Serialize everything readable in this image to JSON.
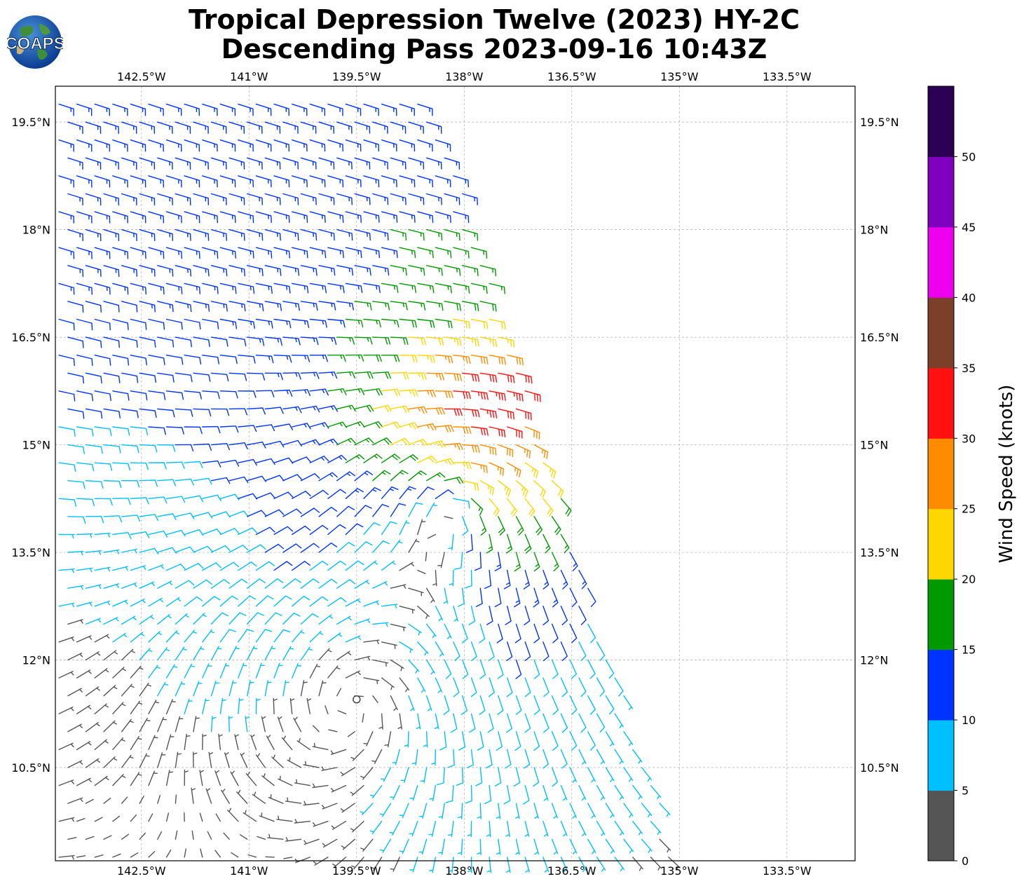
{
  "title": {
    "line1": "Tropical Depression Twelve (2023) HY-2C",
    "line2": "Descending Pass 2023-09-16 10:43Z"
  },
  "logo": {
    "text": "COAPS",
    "icon": "earth-globe-icon"
  },
  "map": {
    "lon_ticks": [
      "142.5°W",
      "141°W",
      "139.5°W",
      "138°W",
      "136.5°W",
      "135°W",
      "133.5°W"
    ],
    "lat_ticks": [
      "19.5°N",
      "18°N",
      "16.5°N",
      "15°N",
      "13.5°N",
      "12°N",
      "10.5°N"
    ],
    "lon_values": [
      -142.5,
      -141,
      -139.5,
      -138,
      -136.5,
      -135,
      -133.5
    ],
    "lat_values": [
      19.5,
      18,
      16.5,
      15,
      13.5,
      12,
      10.5
    ],
    "lon_range": [
      -143.7,
      -132.55
    ],
    "lat_range": [
      9.2,
      20.0
    ],
    "grid": true,
    "storm_center": {
      "lon": -139.5,
      "lat": 11.45,
      "marker": "open-circle"
    },
    "secondary_circulation": {
      "lon": -138.1,
      "lat": 14.3
    },
    "swath": "descending pass, east edge slanting from about 138.5°W at 20°N to 135°W at 9.2°N"
  },
  "colorbar": {
    "label": "Wind Speed (knots)",
    "ticks": [
      "0",
      "5",
      "10",
      "15",
      "20",
      "25",
      "30",
      "35",
      "40",
      "45",
      "50"
    ],
    "bins": [
      {
        "from": 0,
        "to": 5,
        "color": "#555555"
      },
      {
        "from": 5,
        "to": 10,
        "color": "#00BFFF"
      },
      {
        "from": 10,
        "to": 15,
        "color": "#0033FF"
      },
      {
        "from": 15,
        "to": 20,
        "color": "#009900"
      },
      {
        "from": 20,
        "to": 25,
        "color": "#FFD700"
      },
      {
        "from": 25,
        "to": 30,
        "color": "#FF8C00"
      },
      {
        "from": 30,
        "to": 35,
        "color": "#FF1111"
      },
      {
        "from": 35,
        "to": 40,
        "color": "#7B3F2A"
      },
      {
        "from": 40,
        "to": 45,
        "color": "#EE00EE"
      },
      {
        "from": 45,
        "to": 50,
        "color": "#8000C0"
      },
      {
        "from": 50,
        "to": 55,
        "color": "#2B0055"
      }
    ]
  }
}
